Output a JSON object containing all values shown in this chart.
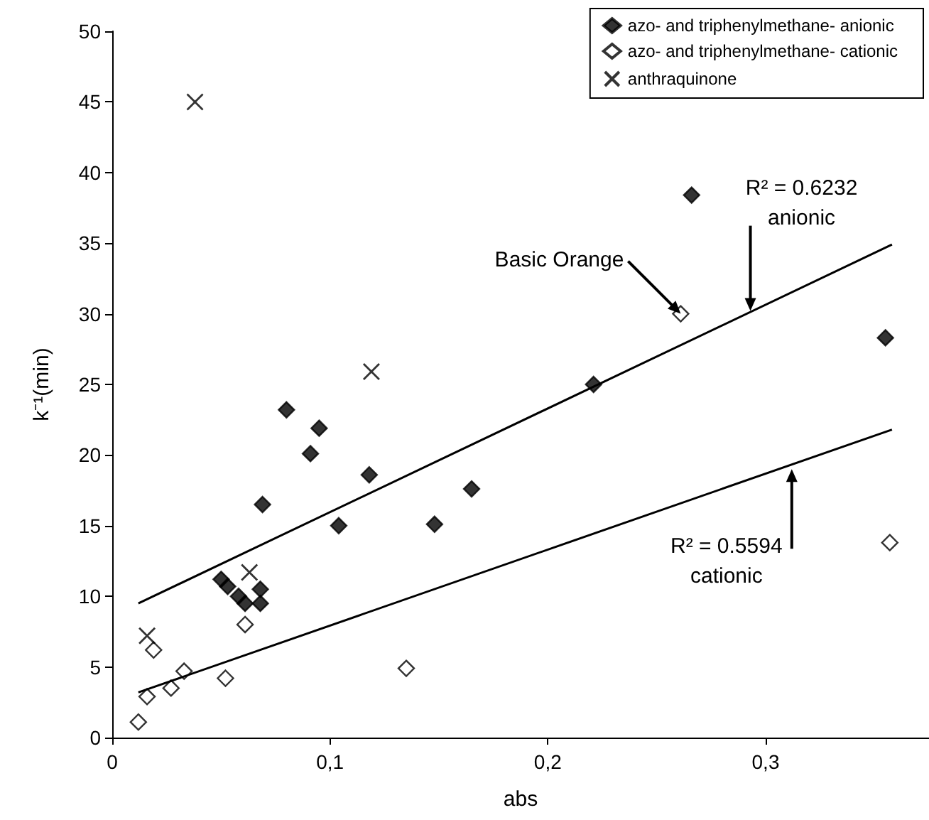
{
  "chart_data": {
    "type": "scatter",
    "xlabel": "abs",
    "ylabel": "k⁻¹(min)",
    "xlim": [
      0,
      0.375
    ],
    "xticks": [
      0,
      {
        "value": 0.1,
        "label": "0,1"
      },
      {
        "value": 0.2,
        "label": "0,2"
      },
      {
        "value": 0.3,
        "label": "0,3"
      }
    ],
    "ylim": [
      0,
      50
    ],
    "yticks": [
      0,
      5,
      10,
      15,
      20,
      25,
      30,
      35,
      40,
      45,
      50
    ],
    "grid": false,
    "legend": "top right",
    "series": [
      {
        "name": "azo- and triphenylmethane- anionic",
        "color": "#000000",
        "marker": "diamond",
        "x": [
          0.266,
          0.355,
          0.221,
          0.08,
          0.095,
          0.091,
          0.118,
          0.165,
          0.069,
          0.104,
          0.148,
          0.05,
          0.053,
          0.058,
          0.061,
          0.068,
          0.068
        ],
        "values": [
          38.4,
          28.3,
          25.0,
          23.2,
          21.9,
          20.1,
          18.6,
          17.6,
          16.5,
          15.0,
          15.1,
          11.2,
          10.7,
          10.0,
          9.5,
          10.5,
          9.5
        ]
      },
      {
        "name": "azo- and triphenylmethane- cationic",
        "color": "#000000",
        "marker": "diamond",
        "x": [
          0.261,
          0.357,
          0.135,
          0.061,
          0.052,
          0.033,
          0.027,
          0.016,
          0.019,
          0.012
        ],
        "values": [
          30.0,
          13.8,
          4.9,
          8.0,
          4.2,
          4.7,
          3.5,
          2.9,
          6.2,
          1.1
        ]
      },
      {
        "name": "anthraquinone",
        "color": "#000000",
        "marker": "cross",
        "x": [
          0.038,
          0.119,
          0.063,
          0.016
        ],
        "values": [
          45.0,
          25.9,
          11.7,
          7.2
        ]
      },
      {
        "type": "line",
        "color": "#000000",
        "marker": "none",
        "line_style": "solid",
        "x": [
          0.012,
          0.358
        ],
        "values": [
          9.5,
          34.9
        ]
      },
      {
        "type": "line",
        "color": "#000000",
        "marker": "none",
        "line_style": "solid",
        "x": [
          0.012,
          0.358
        ],
        "values": [
          3.2,
          21.8
        ]
      }
    ],
    "annotations": [
      {
        "text": "Basic Orange",
        "x": 0.261,
        "y": 30.0
      },
      {
        "text": "R² = 0.6232\nanionic",
        "x": 0.293,
        "y": 30.2
      },
      {
        "text": "R² = 0.5594\ncationic",
        "x": 0.312,
        "y": 19.0
      }
    ]
  }
}
